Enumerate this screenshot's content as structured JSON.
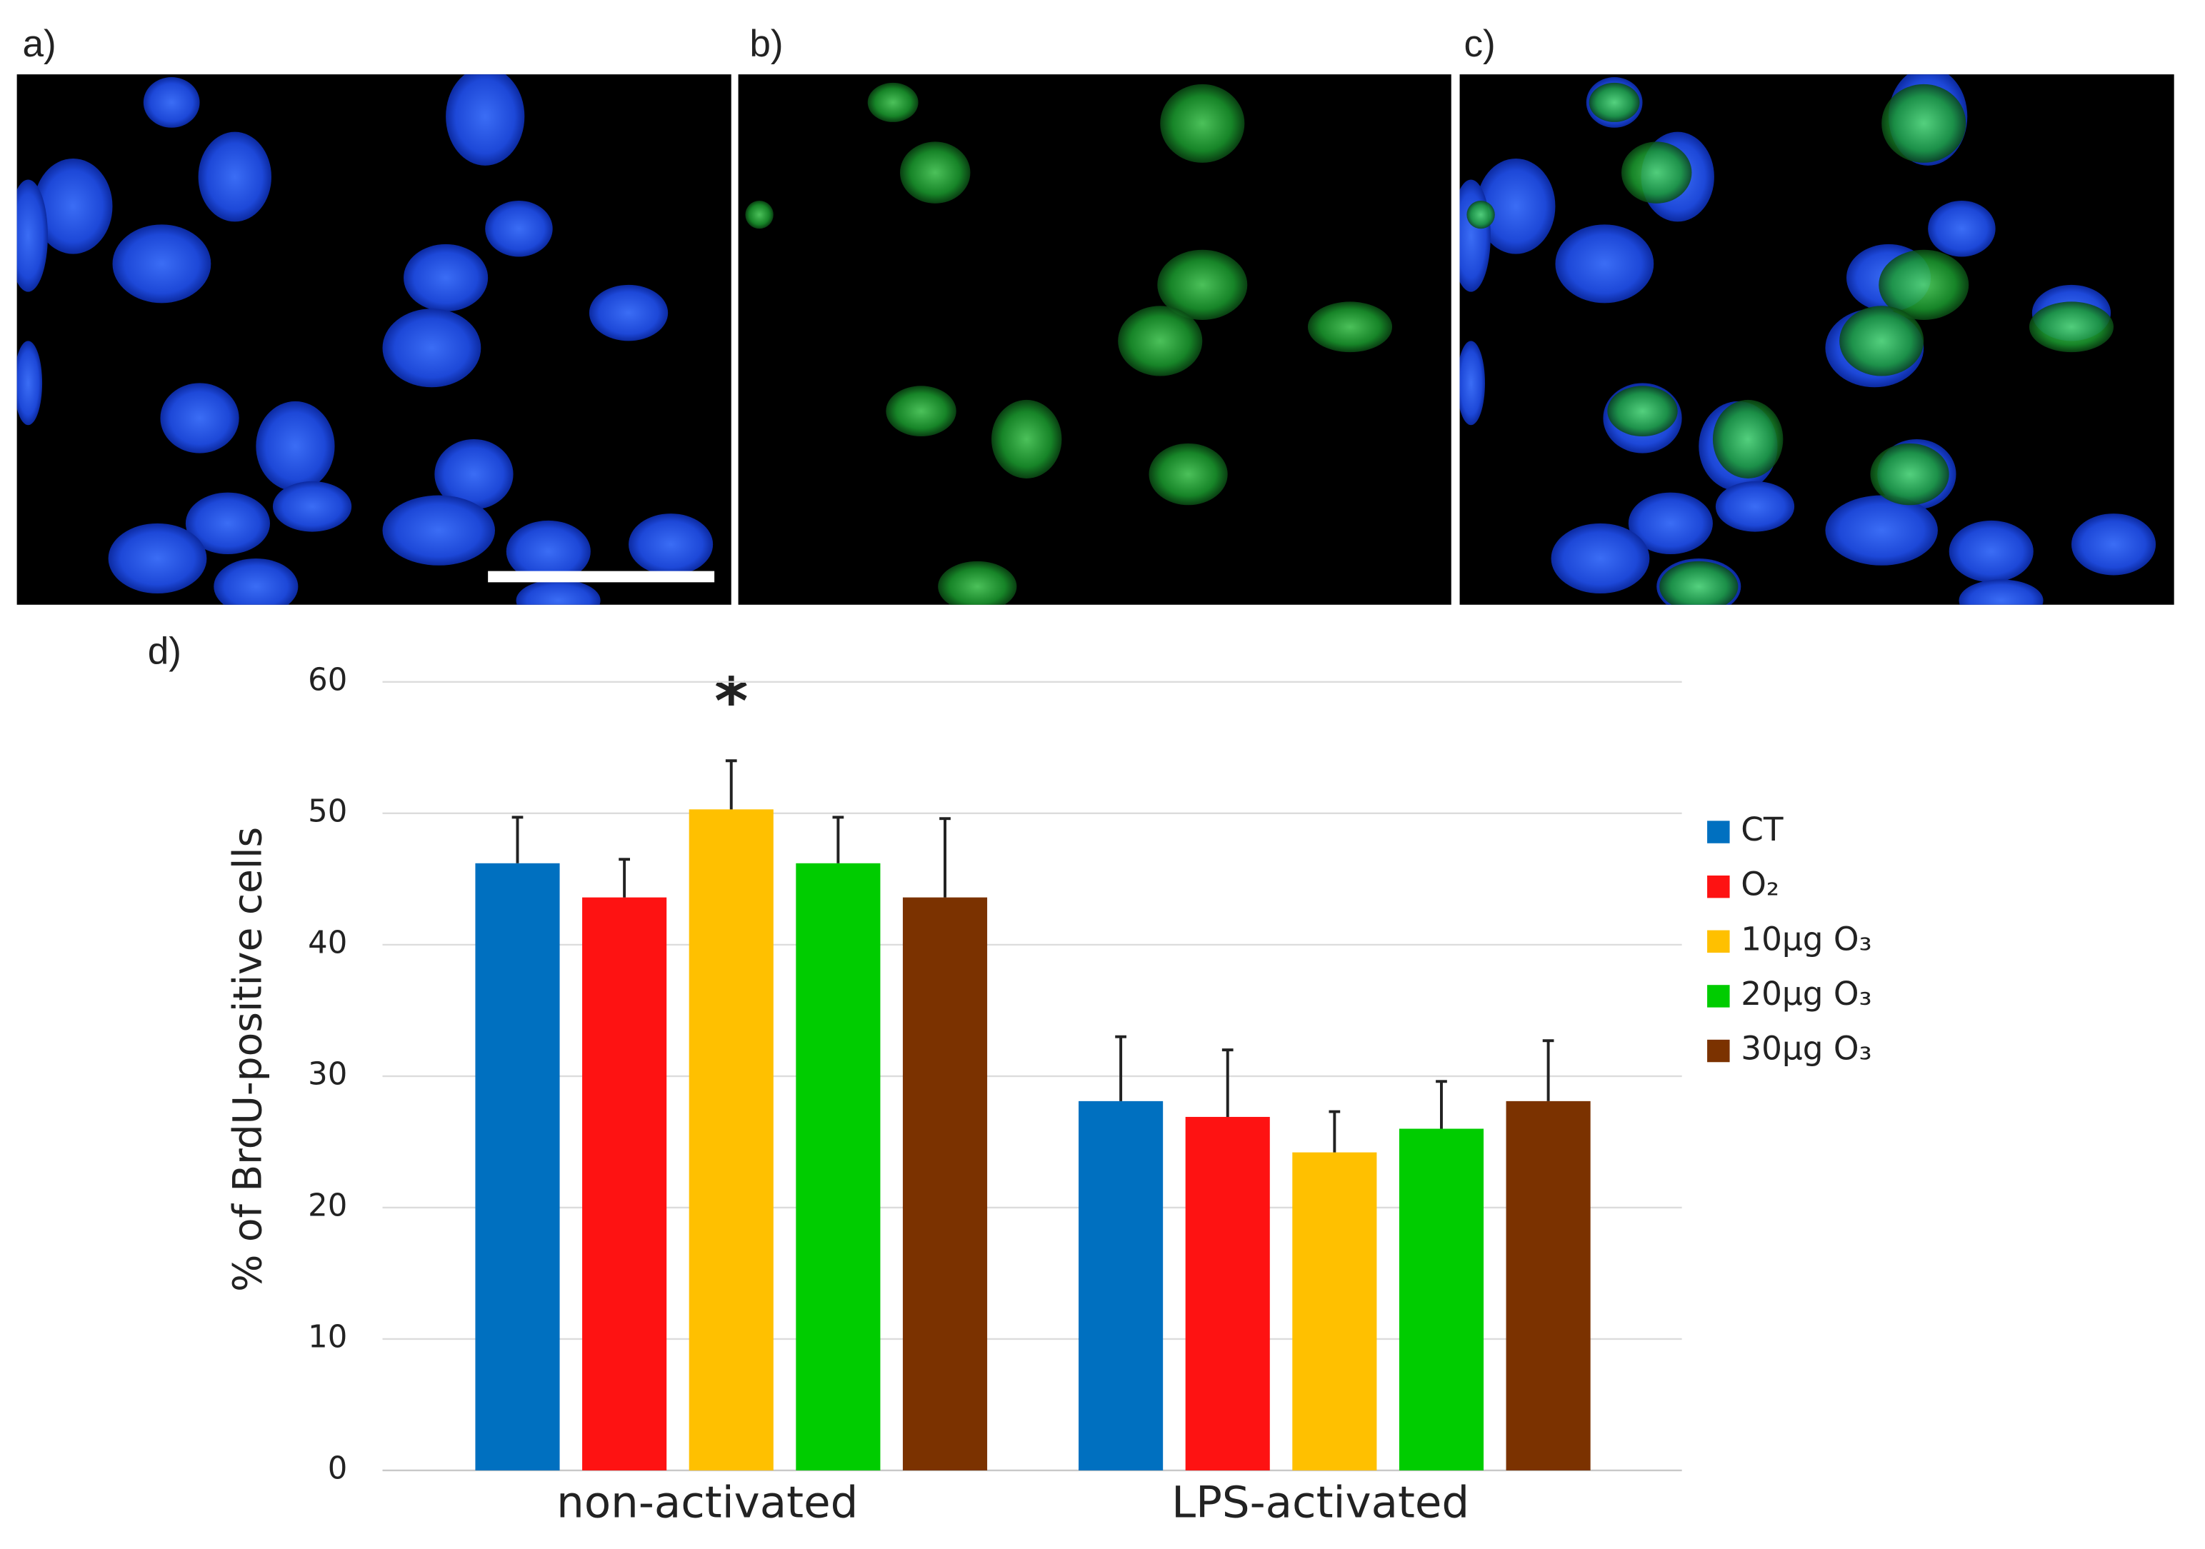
{
  "panel_labels": [
    "a)",
    "b)",
    "c)"
  ],
  "chart_data": {
    "type": "bar",
    "panel_label": "d)",
    "y_label": "% of BrdU-positive cells",
    "categories": [
      "non-activated",
      "LPS-activated"
    ],
    "series": [
      {
        "name": "CT",
        "color": "#0070c0",
        "values": [
          46.2,
          28.1
        ],
        "errors": [
          3.5,
          4.9
        ]
      },
      {
        "name": "O₂",
        "color": "#fe1212",
        "values": [
          43.6,
          26.9
        ],
        "errors": [
          2.9,
          5.1
        ]
      },
      {
        "name": "10µg O₃",
        "color": "#ffc000",
        "values": [
          50.3,
          24.2
        ],
        "errors": [
          3.7,
          3.1
        ]
      },
      {
        "name": "20µg O₃",
        "color": "#00cc00",
        "values": [
          46.2,
          26.0
        ],
        "errors": [
          3.5,
          3.6
        ]
      },
      {
        "name": "30µg O₃",
        "color": "#7b3200",
        "values": [
          43.6,
          28.1
        ],
        "errors": [
          6.0,
          4.6
        ]
      }
    ],
    "annotation": "*",
    "ylim": [
      0,
      60
    ],
    "yticks": [
      0,
      10,
      20,
      30,
      40,
      50,
      60
    ],
    "grid": true,
    "legend": "right"
  }
}
